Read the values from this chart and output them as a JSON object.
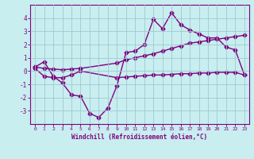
{
  "xlabel": "Windchill (Refroidissement éolien,°C)",
  "bg_color": "#c8eef0",
  "grid_color": "#a0c8d0",
  "line_color": "#800080",
  "x_ticks": [
    0,
    1,
    2,
    3,
    4,
    5,
    6,
    7,
    8,
    9,
    10,
    11,
    12,
    13,
    14,
    15,
    16,
    17,
    18,
    19,
    20,
    21,
    22,
    23
  ],
  "ylim": [
    -4,
    5
  ],
  "xlim": [
    -0.5,
    23.5
  ],
  "series1_x": [
    0,
    1,
    2,
    3,
    4,
    5,
    6,
    7,
    8,
    9,
    10,
    11,
    12,
    13,
    14,
    15,
    16,
    17,
    18,
    19,
    20,
    21,
    22,
    23
  ],
  "series1_y": [
    0.3,
    0.7,
    -0.4,
    -0.9,
    -1.8,
    -1.9,
    -3.2,
    -3.5,
    -2.8,
    -1.1,
    1.4,
    1.5,
    2.0,
    3.9,
    3.2,
    4.4,
    3.5,
    3.1,
    2.8,
    2.5,
    2.5,
    1.8,
    1.6,
    -0.3
  ],
  "series2_x": [
    0,
    1,
    2,
    3,
    4,
    5,
    9,
    10,
    11,
    12,
    13,
    14,
    15,
    16,
    17,
    18,
    19,
    20,
    21,
    22,
    23
  ],
  "series2_y": [
    0.2,
    -0.4,
    -0.5,
    -0.5,
    -0.3,
    0.0,
    -0.5,
    -0.45,
    -0.4,
    -0.35,
    -0.3,
    -0.3,
    -0.25,
    -0.2,
    -0.2,
    -0.15,
    -0.15,
    -0.1,
    -0.1,
    -0.1,
    -0.3
  ],
  "series3_x": [
    0,
    1,
    2,
    3,
    4,
    5,
    9,
    10,
    11,
    12,
    13,
    14,
    15,
    16,
    17,
    18,
    19,
    20,
    21,
    22,
    23
  ],
  "series3_y": [
    0.3,
    0.2,
    0.15,
    0.1,
    0.15,
    0.2,
    0.6,
    0.85,
    1.0,
    1.15,
    1.3,
    1.5,
    1.7,
    1.9,
    2.1,
    2.2,
    2.3,
    2.4,
    2.5,
    2.6,
    2.7
  ],
  "marker_size": 2.5,
  "line_width": 1.0
}
